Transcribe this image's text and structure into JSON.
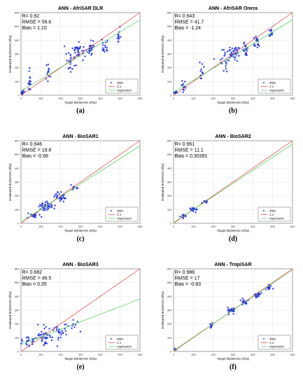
{
  "chart_data": [
    {
      "id": "a",
      "type": "scatter",
      "title": "ANN - AfriSAR DLR",
      "caption": "(a)",
      "stats": [
        "R= 0.92",
        "RMSE = 56.6",
        "Bias = 1.10"
      ],
      "xlabel": "Target BIOMASS (t/ha)",
      "ylabel": "Estimated BIOMASS (t/ha)",
      "xlim": [
        0,
        600
      ],
      "ylim": [
        0,
        600
      ],
      "xticks": [
        0,
        100,
        200,
        300,
        400,
        500,
        600
      ],
      "yticks": [
        0,
        100,
        200,
        300,
        400,
        500,
        600
      ],
      "grid": true,
      "legend": [
        "data",
        "1:1",
        "regression"
      ],
      "legend_position": "bottom-right",
      "regression": {
        "slope": 0.86,
        "intercept": 30
      },
      "clusters": [
        {
          "x": 10,
          "y": 20,
          "n": 10,
          "sx": 8,
          "sy": 18
        },
        {
          "x": 45,
          "y": 110,
          "n": 14,
          "sx": 6,
          "sy": 70
        },
        {
          "x": 140,
          "y": 170,
          "n": 12,
          "sx": 10,
          "sy": 70
        },
        {
          "x": 250,
          "y": 250,
          "n": 18,
          "sx": 25,
          "sy": 80
        },
        {
          "x": 290,
          "y": 320,
          "n": 35,
          "sx": 35,
          "sy": 60
        },
        {
          "x": 350,
          "y": 330,
          "n": 20,
          "sx": 15,
          "sy": 60
        },
        {
          "x": 420,
          "y": 350,
          "n": 16,
          "sx": 12,
          "sy": 60
        },
        {
          "x": 490,
          "y": 420,
          "n": 12,
          "sx": 8,
          "sy": 50
        }
      ]
    },
    {
      "id": "b",
      "type": "scatter",
      "title": "ANN - AfriSAR Onera",
      "caption": "(b)",
      "stats": [
        "R= 0.943",
        "RMSE = 41.7",
        "Bias = -1.24"
      ],
      "xlabel": "Target BIOMASS (t/ha)",
      "ylabel": "Estimated BIOMASS (t/ha)",
      "xlim": [
        0,
        600
      ],
      "ylim": [
        0,
        600
      ],
      "xticks": [
        0,
        100,
        200,
        300,
        400,
        500,
        600
      ],
      "yticks": [
        0,
        100,
        200,
        300,
        400,
        500,
        600
      ],
      "grid": true,
      "legend": [
        "data",
        "1:1",
        "regression"
      ],
      "legend_position": "bottom-right",
      "regression": {
        "slope": 0.88,
        "intercept": 20
      },
      "clusters": [
        {
          "x": 10,
          "y": 20,
          "n": 10,
          "sx": 8,
          "sy": 12
        },
        {
          "x": 50,
          "y": 70,
          "n": 12,
          "sx": 8,
          "sy": 40
        },
        {
          "x": 140,
          "y": 170,
          "n": 12,
          "sx": 10,
          "sy": 50
        },
        {
          "x": 250,
          "y": 250,
          "n": 18,
          "sx": 25,
          "sy": 60
        },
        {
          "x": 300,
          "y": 320,
          "n": 35,
          "sx": 35,
          "sy": 45
        },
        {
          "x": 360,
          "y": 330,
          "n": 20,
          "sx": 15,
          "sy": 40
        },
        {
          "x": 420,
          "y": 380,
          "n": 16,
          "sx": 12,
          "sy": 45
        },
        {
          "x": 490,
          "y": 440,
          "n": 10,
          "sx": 8,
          "sy": 30
        }
      ]
    },
    {
      "id": "c",
      "type": "scatter",
      "title": "ANN - BioSAR1",
      "caption": "(c)",
      "stats": [
        "R= 0.946",
        "RMSE = 18.8",
        "Bias = -0.66"
      ],
      "xlabel": "Target BIOMASS (t/ha)",
      "ylabel": "Estimated BIOMASS (t/ha)",
      "xlim": [
        0,
        600
      ],
      "ylim": [
        0,
        600
      ],
      "xticks": [
        0,
        100,
        200,
        300,
        400,
        500,
        600
      ],
      "yticks": [
        0,
        100,
        200,
        300,
        400,
        500,
        600
      ],
      "grid": true,
      "legend": [
        "data",
        "1:1",
        "regression"
      ],
      "legend_position": "bottom-right",
      "regression": {
        "slope": 0.92,
        "intercept": 10
      },
      "clusters": [
        {
          "x": 60,
          "y": 60,
          "n": 20,
          "sx": 25,
          "sy": 18
        },
        {
          "x": 130,
          "y": 130,
          "n": 40,
          "sx": 30,
          "sy": 25
        },
        {
          "x": 200,
          "y": 190,
          "n": 30,
          "sx": 25,
          "sy": 25
        },
        {
          "x": 270,
          "y": 260,
          "n": 10,
          "sx": 15,
          "sy": 20
        }
      ]
    },
    {
      "id": "d",
      "type": "scatter",
      "title": "ANN - BioSAR2",
      "caption": "(d)",
      "stats": [
        "R= 0.961",
        "RMSE = 11.1",
        "Bias = 0.30391"
      ],
      "xlabel": "Target BIOMASS (t/ha)",
      "ylabel": "Estimated BIOMASS (t/ha)",
      "xlim": [
        0,
        600
      ],
      "ylim": [
        0,
        600
      ],
      "xticks": [
        0,
        100,
        200,
        300,
        400,
        500,
        600
      ],
      "yticks": [
        0,
        100,
        200,
        300,
        400,
        500,
        600
      ],
      "grid": true,
      "legend": [
        "data",
        "1:1",
        "regression"
      ],
      "legend_position": "bottom-right",
      "regression": {
        "slope": 0.95,
        "intercept": 5
      },
      "clusters": [
        {
          "x": 50,
          "y": 50,
          "n": 14,
          "sx": 15,
          "sy": 12
        },
        {
          "x": 100,
          "y": 100,
          "n": 18,
          "sx": 20,
          "sy": 15
        },
        {
          "x": 160,
          "y": 160,
          "n": 10,
          "sx": 15,
          "sy": 12
        }
      ]
    },
    {
      "id": "e",
      "type": "scatter",
      "title": "ANN - BioSAR3",
      "caption": "(e)",
      "stats": [
        "R= 0.682",
        "RMSE = 46.5",
        "Bias = 0.35"
      ],
      "xlabel": "Target BIOMASS (t/ha)",
      "ylabel": "Estimated BIOMASS (t/ha)",
      "xlim": [
        0,
        600
      ],
      "ylim": [
        0,
        600
      ],
      "xticks": [
        0,
        100,
        200,
        300,
        400,
        500,
        600
      ],
      "yticks": [
        0,
        100,
        200,
        300,
        400,
        500,
        600
      ],
      "grid": true,
      "legend": [
        "data",
        "1:1",
        "regression"
      ],
      "legend_position": "bottom-right",
      "regression": {
        "slope": 0.55,
        "intercept": 50
      },
      "clusters": [
        {
          "x": 40,
          "y": 70,
          "n": 20,
          "sx": 25,
          "sy": 40
        },
        {
          "x": 120,
          "y": 110,
          "n": 40,
          "sx": 35,
          "sy": 50
        },
        {
          "x": 200,
          "y": 150,
          "n": 25,
          "sx": 30,
          "sy": 50
        },
        {
          "x": 270,
          "y": 200,
          "n": 8,
          "sx": 20,
          "sy": 40
        }
      ]
    },
    {
      "id": "f",
      "type": "scatter",
      "title": "ANN - TropiSAR",
      "caption": "(f)",
      "stats": [
        "R= 0.986",
        "RMSE = 17",
        "Bias = -0.83"
      ],
      "xlabel": "Target BIOMASS (t/ha)",
      "ylabel": "Estimated BIOMASS (t/ha)",
      "xlim": [
        0,
        600
      ],
      "ylim": [
        0,
        600
      ],
      "xticks": [
        0,
        100,
        200,
        300,
        400,
        500,
        600
      ],
      "yticks": [
        0,
        100,
        200,
        300,
        400,
        500,
        600
      ],
      "grid": true,
      "legend": [
        "data",
        "1:1",
        "regression"
      ],
      "legend_position": "bottom-right",
      "regression": {
        "slope": 0.98,
        "intercept": 5
      },
      "clusters": [
        {
          "x": 10,
          "y": 15,
          "n": 5,
          "sx": 5,
          "sy": 5
        },
        {
          "x": 190,
          "y": 190,
          "n": 10,
          "sx": 8,
          "sy": 15
        },
        {
          "x": 290,
          "y": 300,
          "n": 25,
          "sx": 15,
          "sy": 25
        },
        {
          "x": 360,
          "y": 360,
          "n": 20,
          "sx": 15,
          "sy": 20
        },
        {
          "x": 420,
          "y": 410,
          "n": 20,
          "sx": 15,
          "sy": 20
        },
        {
          "x": 480,
          "y": 460,
          "n": 14,
          "sx": 12,
          "sy": 20
        }
      ]
    }
  ],
  "colors": {
    "data": "#1a2be6",
    "one_to_one": "#e8383d",
    "regression": "#3fd04a",
    "grid": "#d9d9d9"
  }
}
